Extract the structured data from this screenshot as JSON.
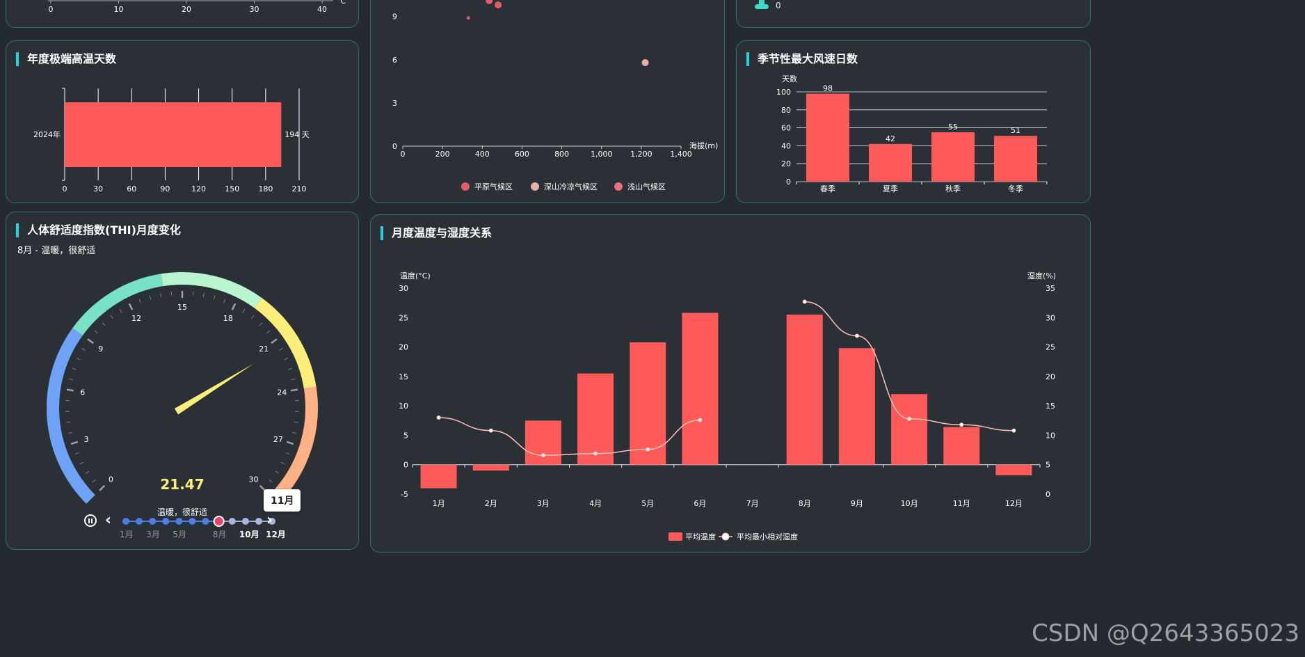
{
  "panels": {
    "top_left": {
      "axis_ticks": [
        "0",
        "10",
        "20",
        "30",
        "40"
      ],
      "unit": "℃"
    },
    "top_right": {
      "value": "0"
    },
    "extreme_heat": {
      "title": "年度极端高温天数",
      "chart_data": {
        "type": "bar",
        "orientation": "horizontal",
        "categories": [
          "2024年"
        ],
        "values": [
          194
        ],
        "value_label": "194 天",
        "xlim": [
          0,
          210
        ],
        "x_ticks": [
          "0",
          "30",
          "60",
          "90",
          "120",
          "150",
          "180",
          "210"
        ],
        "bar_color": "#ff5a5a"
      }
    },
    "scatter": {
      "chart_data": {
        "type": "scatter",
        "xlabel": "海拔(m)",
        "xlim": [
          0,
          1400
        ],
        "x_ticks": [
          "0",
          "200",
          "400",
          "600",
          "800",
          "1,000",
          "1,200",
          "1,400"
        ],
        "y_ticks": [
          "0",
          "3",
          "6",
          "9"
        ],
        "series": [
          {
            "name": "平原气候区",
            "color": "#e25c66",
            "points": [
              [
                330,
                8.9
              ],
              [
                435,
                10.1
              ],
              [
                480,
                9.8
              ]
            ]
          },
          {
            "name": "深山冷凉气候区",
            "color": "#e6b0a8",
            "points": [
              [
                1220,
                5.8
              ]
            ]
          },
          {
            "name": "浅山气候区",
            "color": "#e8707a",
            "points": []
          }
        ]
      }
    },
    "wind": {
      "title": "季节性最大风速日数",
      "chart_data": {
        "type": "bar",
        "ylabel": "天数",
        "categories": [
          "春季",
          "夏季",
          "秋季",
          "冬季"
        ],
        "values": [
          98,
          42,
          55,
          51
        ],
        "ylim": [
          0,
          100
        ],
        "y_ticks": [
          "0",
          "20",
          "40",
          "60",
          "80",
          "100"
        ],
        "bar_color": "#ff5a5a"
      }
    },
    "thi": {
      "title": "人体舒适度指数(THI)月度变化",
      "subtitle": "8月 - 温暖，很舒适",
      "chart_data": {
        "type": "gauge",
        "value": 21.47,
        "value_text": "21.47",
        "min": 0,
        "max": 30,
        "tick_labels": [
          "0",
          "3",
          "6",
          "9",
          "12",
          "15",
          "18",
          "21",
          "24",
          "27",
          "30"
        ],
        "detail": "温暖，很舒适",
        "bands": [
          {
            "to": 9,
            "color": "#6fa3f7"
          },
          {
            "to": 14,
            "color": "#77e2c6"
          },
          {
            "to": 19,
            "color": "#b9f5cf"
          },
          {
            "to": 24,
            "color": "#fdee79"
          },
          {
            "to": 30,
            "color": "#ffb085"
          }
        ]
      },
      "timeline": {
        "months": [
          "1月",
          "2月",
          "3月",
          "4月",
          "5月",
          "6月",
          "7月",
          "8月",
          "9月",
          "10月",
          "11月",
          "12月"
        ],
        "labels": [
          "1月",
          "3月",
          "5月",
          "8月",
          "10月",
          "12月"
        ],
        "current": "8月",
        "hover": "11月"
      }
    },
    "temp_humidity": {
      "title": "月度温度与湿度关系",
      "chart_data": {
        "type": "bar",
        "categories": [
          "1月",
          "2月",
          "3月",
          "4月",
          "5月",
          "6月",
          "7月",
          "8月",
          "9月",
          "10月",
          "11月",
          "12月"
        ],
        "y_left": {
          "label": "温度(°C)",
          "ylim": [
            -5,
            30
          ],
          "ticks": [
            "-5",
            "0",
            "5",
            "10",
            "15",
            "20",
            "25",
            "30"
          ]
        },
        "y_right": {
          "label": "湿度(%)",
          "ylim": [
            0,
            35
          ],
          "ticks": [
            "0",
            "5",
            "10",
            "15",
            "20",
            "25",
            "30",
            "35"
          ]
        },
        "series": [
          {
            "name": "平均温度",
            "type": "bar",
            "color": "#ff5a5a",
            "values": [
              -4,
              -1,
              7.5,
              15.5,
              20.8,
              25.8,
              null,
              25.5,
              19.8,
              12,
              6.4,
              -1.8
            ]
          },
          {
            "name": "平均最小相对湿度",
            "type": "line",
            "color": "#ffc2b8",
            "values": [
              13,
              10.8,
              6.6,
              6.9,
              7.6,
              12.6,
              null,
              32.7,
              26.9,
              12.8,
              11.8,
              10.8
            ]
          }
        ]
      }
    }
  },
  "watermark": "CSDN @Q2643365023"
}
